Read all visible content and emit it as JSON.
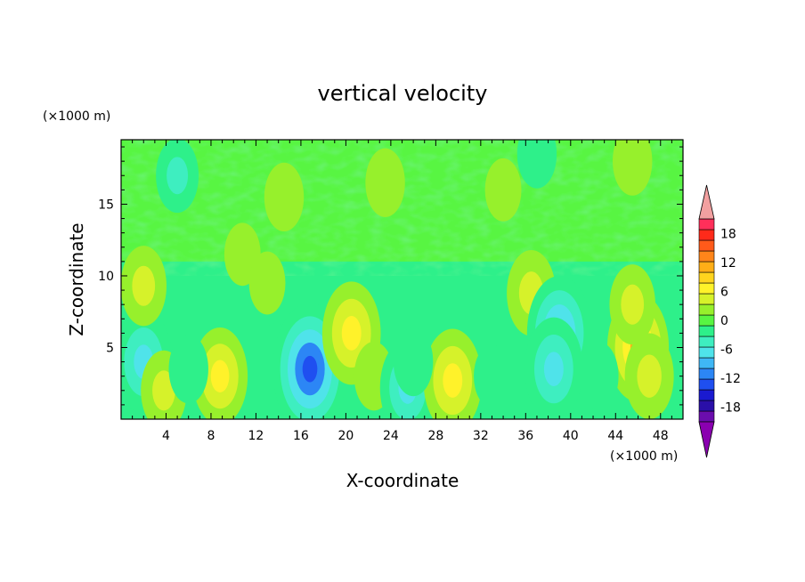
{
  "chart_data": {
    "type": "heatmap",
    "title": "vertical velocity",
    "xlabel": "X-coordinate",
    "ylabel": "Z-coordinate",
    "x_unit_label": "(×1000 m)",
    "y_unit_label": "(×1000 m)",
    "xlim": [
      0,
      50
    ],
    "ylim": [
      0,
      19.5
    ],
    "x_ticks": [
      4,
      8,
      12,
      16,
      20,
      24,
      28,
      32,
      36,
      40,
      44,
      48
    ],
    "y_ticks": [
      5,
      10,
      15
    ],
    "colorbar": {
      "min": -21,
      "max": 21,
      "step": 3,
      "extend": "both",
      "tick_values": [
        18,
        12,
        6,
        0,
        -6,
        -12,
        -18
      ],
      "colors": [
        "#6a0dad",
        "#2a0fa8",
        "#1a1ad0",
        "#1f4ff0",
        "#2c86f5",
        "#3fb7f5",
        "#4fe3ea",
        "#3eeec0",
        "#2ef08a",
        "#58f542",
        "#97f02c",
        "#d6f22a",
        "#fff22a",
        "#ffd41e",
        "#ffae17",
        "#ff851a",
        "#ff5a1a",
        "#ff2a1a",
        "#ff2f5a"
      ],
      "over_color": "#f2a0a0",
      "under_color": "#8a00b0"
    },
    "features": [
      {
        "x": 2.0,
        "z": 4.0,
        "value": -10
      },
      {
        "x": 2.0,
        "z": 9.3,
        "value": 6
      },
      {
        "x": 3.8,
        "z": 2.0,
        "value": 6
      },
      {
        "x": 8.8,
        "z": 3.0,
        "value": 9
      },
      {
        "x": 10.8,
        "z": 11.5,
        "value": 3
      },
      {
        "x": 13.0,
        "z": 9.5,
        "value": 3
      },
      {
        "x": 13.8,
        "z": 4.5,
        "value": -3
      },
      {
        "x": 16.8,
        "z": 3.5,
        "value": -15
      },
      {
        "x": 20.5,
        "z": 6.0,
        "value": 10
      },
      {
        "x": 22.5,
        "z": 3.0,
        "value": 4
      },
      {
        "x": 25.5,
        "z": 2.2,
        "value": -9
      },
      {
        "x": 29.5,
        "z": 2.7,
        "value": 10
      },
      {
        "x": 26.0,
        "z": 4.0,
        "value": -4
      },
      {
        "x": 36.5,
        "z": 8.8,
        "value": 7
      },
      {
        "x": 39.0,
        "z": 6.0,
        "value": -12
      },
      {
        "x": 38.5,
        "z": 3.5,
        "value": -10
      },
      {
        "x": 46.0,
        "z": 5.0,
        "value": 11
      },
      {
        "x": 47.0,
        "z": 3.0,
        "value": 7
      },
      {
        "x": 45.5,
        "z": 8.0,
        "value": 6
      },
      {
        "x": 33.0,
        "z": 3.0,
        "value": -3
      },
      {
        "x": 42.5,
        "z": 3.0,
        "value": -4
      },
      {
        "x": 6.0,
        "z": 3.5,
        "value": -4
      },
      {
        "x": 5.0,
        "z": 17.0,
        "value": -5
      },
      {
        "x": 14.5,
        "z": 15.5,
        "value": 4
      },
      {
        "x": 23.5,
        "z": 16.5,
        "value": 4
      },
      {
        "x": 34.0,
        "z": 16.0,
        "value": 3
      },
      {
        "x": 45.5,
        "z": 18.0,
        "value": 4
      },
      {
        "x": 37.0,
        "z": 18.5,
        "value": -4
      }
    ]
  }
}
